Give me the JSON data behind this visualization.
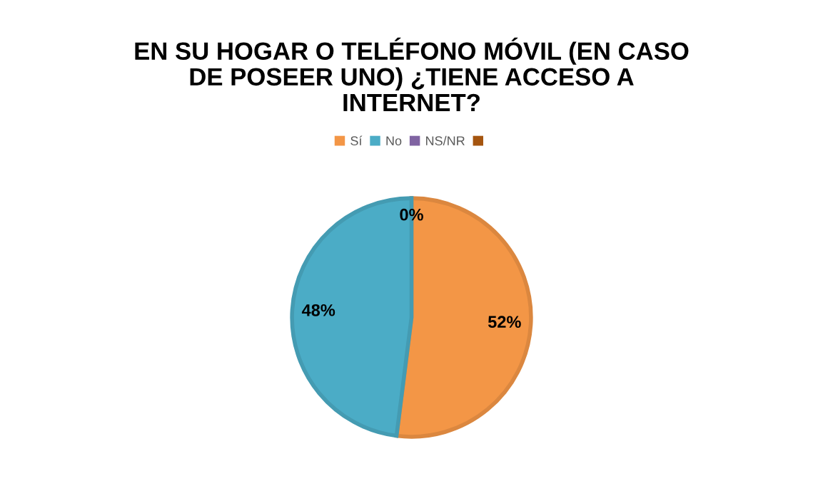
{
  "chart_data": {
    "type": "pie",
    "title": "EN SU HOGAR O TELÉFONO MÓVIL (EN CASO\nDE POSEER UNO) ¿TIENE ACCESO A\nINTERNET?",
    "categories": [
      "Sí",
      "No",
      "NS/NR",
      null
    ],
    "values": [
      52,
      48,
      0,
      0
    ],
    "colors": [
      "#f39646",
      "#4bacc6",
      "#8064a2",
      "#a5550f"
    ],
    "value_labels": [
      "52%",
      "48%",
      "0%",
      null
    ],
    "legend": "top"
  }
}
